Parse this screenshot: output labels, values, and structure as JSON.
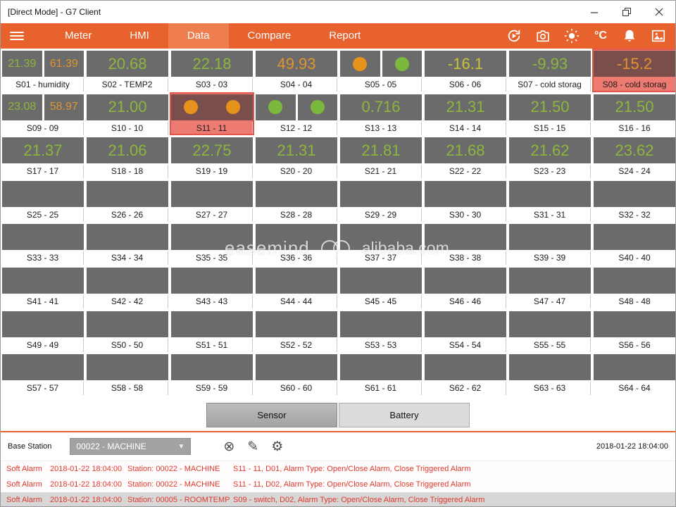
{
  "window": {
    "title": "[Direct Mode] - G7 Client"
  },
  "nav": {
    "celsius_label": "°C",
    "tabs": [
      {
        "label": "Meter",
        "active": false
      },
      {
        "label": "HMI",
        "active": false
      },
      {
        "label": "Data",
        "active": true
      },
      {
        "label": "Compare",
        "active": false
      },
      {
        "label": "Report",
        "active": false
      }
    ]
  },
  "colors": {
    "accent": "#E7622C",
    "value_green": "#8CB63C",
    "value_orange": "#DF9430",
    "value_yellow": "#C9C437",
    "tile_gray": "#6B6B6B",
    "alarm_tile_bg": "#EE7B72",
    "alarm_text": "#E1382C"
  },
  "watermark": {
    "left": "easemind",
    "right": "alibaba.com"
  },
  "grid": {
    "tiles": [
      {
        "label": "S01 - humidity",
        "type": "dual",
        "values": [
          {
            "v": "21.39",
            "c": "green"
          },
          {
            "v": "61.39",
            "c": "orange"
          }
        ]
      },
      {
        "label": "S02 - TEMP2",
        "type": "value",
        "value": "20.68",
        "color": "green"
      },
      {
        "label": "S03 - 03",
        "type": "value",
        "value": "22.18",
        "color": "green"
      },
      {
        "label": "S04 - 04",
        "type": "value",
        "value": "49.93",
        "color": "orange"
      },
      {
        "label": "S05 - 05",
        "type": "circles",
        "circles": [
          "orange",
          "green"
        ]
      },
      {
        "label": "S06 - 06",
        "type": "value",
        "value": "-16.1",
        "color": "yellow"
      },
      {
        "label": "S07 - cold storag",
        "type": "value",
        "value": "-9.93",
        "color": "green"
      },
      {
        "label": "S08 - cold storag",
        "type": "value",
        "value": "-15.2",
        "color": "orange",
        "alarm": true
      },
      {
        "label": "S09 - 09",
        "type": "dual",
        "values": [
          {
            "v": "23.08",
            "c": "green"
          },
          {
            "v": "58.97",
            "c": "orange"
          }
        ]
      },
      {
        "label": "S10 - 10",
        "type": "value",
        "value": "21.00",
        "color": "green"
      },
      {
        "label": "S11 - 11",
        "type": "circles",
        "circles": [
          "orange",
          "orange"
        ],
        "alarm": true
      },
      {
        "label": "S12 - 12",
        "type": "circles",
        "circles": [
          "green",
          "green"
        ]
      },
      {
        "label": "S13 - 13",
        "type": "value",
        "value": "0.716",
        "color": "green"
      },
      {
        "label": "S14 - 14",
        "type": "value",
        "value": "21.31",
        "color": "green"
      },
      {
        "label": "S15 - 15",
        "type": "value",
        "value": "21.50",
        "color": "green"
      },
      {
        "label": "S16 - 16",
        "type": "value",
        "value": "21.50",
        "color": "green"
      },
      {
        "label": "S17 - 17",
        "type": "value",
        "value": "21.37",
        "color": "green"
      },
      {
        "label": "S18 - 18",
        "type": "value",
        "value": "21.06",
        "color": "green"
      },
      {
        "label": "S19 - 19",
        "type": "value",
        "value": "22.75",
        "color": "green"
      },
      {
        "label": "S20 - 20",
        "type": "value",
        "value": "21.31",
        "color": "green"
      },
      {
        "label": "S21 - 21",
        "type": "value",
        "value": "21.81",
        "color": "green"
      },
      {
        "label": "S22 - 22",
        "type": "value",
        "value": "21.68",
        "color": "green"
      },
      {
        "label": "S23 - 23",
        "type": "value",
        "value": "21.62",
        "color": "green"
      },
      {
        "label": "S24 - 24",
        "type": "value",
        "value": "23.62",
        "color": "green"
      },
      {
        "label": "S25 - 25",
        "type": "empty"
      },
      {
        "label": "S26 - 26",
        "type": "empty"
      },
      {
        "label": "S27 - 27",
        "type": "empty"
      },
      {
        "label": "S28 - 28",
        "type": "empty"
      },
      {
        "label": "S29 - 29",
        "type": "empty"
      },
      {
        "label": "S30 - 30",
        "type": "empty"
      },
      {
        "label": "S31 - 31",
        "type": "empty"
      },
      {
        "label": "S32 - 32",
        "type": "empty"
      },
      {
        "label": "S33 - 33",
        "type": "empty"
      },
      {
        "label": "S34 - 34",
        "type": "empty"
      },
      {
        "label": "S35 - 35",
        "type": "empty"
      },
      {
        "label": "S36 - 36",
        "type": "empty"
      },
      {
        "label": "S37 - 37",
        "type": "empty"
      },
      {
        "label": "S38 - 38",
        "type": "empty"
      },
      {
        "label": "S39 - 39",
        "type": "empty"
      },
      {
        "label": "S40 - 40",
        "type": "empty"
      },
      {
        "label": "S41 - 41",
        "type": "empty"
      },
      {
        "label": "S42 - 42",
        "type": "empty"
      },
      {
        "label": "S43 - 43",
        "type": "empty"
      },
      {
        "label": "S44 - 44",
        "type": "empty"
      },
      {
        "label": "S45 - 45",
        "type": "empty"
      },
      {
        "label": "S46 - 46",
        "type": "empty"
      },
      {
        "label": "S47 - 47",
        "type": "empty"
      },
      {
        "label": "S48 - 48",
        "type": "empty"
      },
      {
        "label": "S49 - 49",
        "type": "empty"
      },
      {
        "label": "S50 - 50",
        "type": "empty"
      },
      {
        "label": "S51 - 51",
        "type": "empty"
      },
      {
        "label": "S52 - 52",
        "type": "empty"
      },
      {
        "label": "S53 - 53",
        "type": "empty"
      },
      {
        "label": "S54 - 54",
        "type": "empty"
      },
      {
        "label": "S55 - 55",
        "type": "empty"
      },
      {
        "label": "S56 - 56",
        "type": "empty"
      },
      {
        "label": "S57 - 57",
        "type": "empty"
      },
      {
        "label": "S58 - 58",
        "type": "empty"
      },
      {
        "label": "S59 - 59",
        "type": "empty"
      },
      {
        "label": "S60 - 60",
        "type": "empty"
      },
      {
        "label": "S61 - 61",
        "type": "empty"
      },
      {
        "label": "S62 - 62",
        "type": "empty"
      },
      {
        "label": "S63 - 63",
        "type": "empty"
      },
      {
        "label": "S64 - 64",
        "type": "empty"
      }
    ]
  },
  "footer": {
    "mode_buttons": [
      {
        "label": "Sensor",
        "active": true
      },
      {
        "label": "Battery",
        "active": false
      }
    ],
    "base_station_label": "Base Station",
    "station_select": "00022 - MACHINE",
    "timestamp": "2018-01-22 18:04:00",
    "alarms": [
      {
        "type": "Soft Alarm",
        "time": "2018-01-22 18:04:00",
        "station": "Station: 00022 - MACHINE",
        "detail": "S11 - 11, D01, Alarm Type: Open/Close Alarm, Close Triggered Alarm"
      },
      {
        "type": "Soft Alarm",
        "time": "2018-01-22 18:04:00",
        "station": "Station: 00022 - MACHINE",
        "detail": "S11 - 11, D02, Alarm Type: Open/Close Alarm, Close Triggered Alarm"
      },
      {
        "type": "Soft Alarm",
        "time": "2018-01-22 18:04:00",
        "station": "Station: 00005 - ROOMTEMP",
        "detail": "S09 - switch, D02, Alarm Type: Open/Close Alarm, Close Triggered Alarm"
      }
    ]
  }
}
